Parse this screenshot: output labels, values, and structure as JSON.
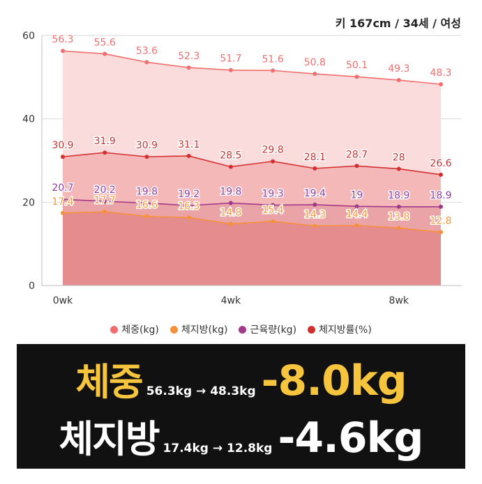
{
  "subtitle": "키 167cm / 34세 / 여성",
  "chart_data": {
    "type": "area",
    "x": [
      0,
      1,
      2,
      3,
      4,
      5,
      6,
      7,
      8,
      9
    ],
    "xticks": [
      {
        "x": 0,
        "label": "0wk"
      },
      {
        "x": 4,
        "label": "4wk"
      },
      {
        "x": 8,
        "label": "8wk"
      }
    ],
    "yticks": [
      0,
      20,
      40,
      60
    ],
    "ylim": [
      0,
      60
    ],
    "grid": true,
    "legend_position": "bottom",
    "series": [
      {
        "name": "체중(kg)",
        "color": "#f26d6d",
        "label_color": "#f07070",
        "fill": "#fbdcdc",
        "values": [
          56.3,
          55.6,
          53.6,
          52.3,
          51.7,
          51.6,
          50.8,
          50.1,
          49.3,
          48.3
        ]
      },
      {
        "name": "체지방률(%)",
        "color": "#d42f2f",
        "label_color": "#c43535",
        "fill": "#f5b8b9",
        "values": [
          30.9,
          31.9,
          30.9,
          31.1,
          28.5,
          29.8,
          28.1,
          28.7,
          28,
          26.6
        ]
      },
      {
        "name": "근육량(kg)",
        "color": "#a23a8a",
        "label_color": "#8d3fa3",
        "fill": "#eaa3a6",
        "values": [
          20.7,
          20.2,
          19.8,
          19.2,
          19.8,
          19.3,
          19.4,
          19,
          18.9,
          18.9
        ]
      },
      {
        "name": "체지방(kg)",
        "color": "#f5913a",
        "label_color": "#f39a3e",
        "fill": "#e58d8e",
        "values": [
          17.4,
          17.7,
          16.6,
          16.3,
          14.8,
          15.4,
          14.3,
          14.4,
          13.8,
          12.8
        ]
      }
    ]
  },
  "legend": [
    {
      "label": "체중(kg)",
      "color": "#f26d6d"
    },
    {
      "label": "체지방(kg)",
      "color": "#f5913a"
    },
    {
      "label": "근육량(kg)",
      "color": "#a23a8a"
    },
    {
      "label": "체지방률(%)",
      "color": "#d42f2f"
    }
  ],
  "summary": {
    "weight": {
      "label": "체중",
      "range": "56.3kg → 48.3kg",
      "delta": "-8.0kg"
    },
    "fat": {
      "label": "체지방",
      "range": "17.4kg → 12.8kg",
      "delta": "-4.6kg"
    }
  }
}
